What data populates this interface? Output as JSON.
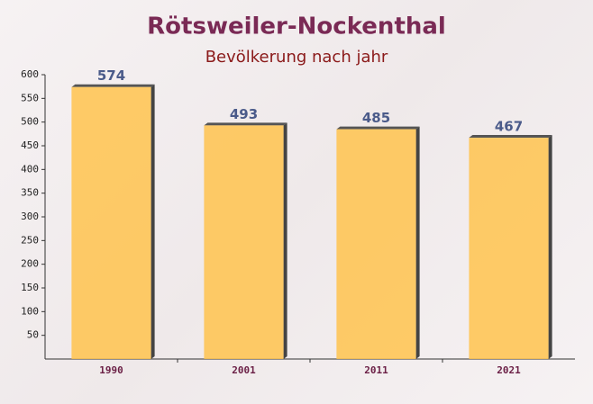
{
  "chart_data": {
    "type": "bar",
    "title": "Rötsweiler-Nockenthal",
    "subtitle": "Bevölkerung nach jahr",
    "categories": [
      "1990",
      "2001",
      "2011",
      "2021"
    ],
    "values": [
      574,
      493,
      485,
      467
    ],
    "color": "#ffc34d",
    "ylim": [
      0,
      600
    ],
    "yticks": [
      50,
      100,
      150,
      200,
      250,
      300,
      350,
      400,
      450,
      500,
      550,
      600
    ]
  }
}
